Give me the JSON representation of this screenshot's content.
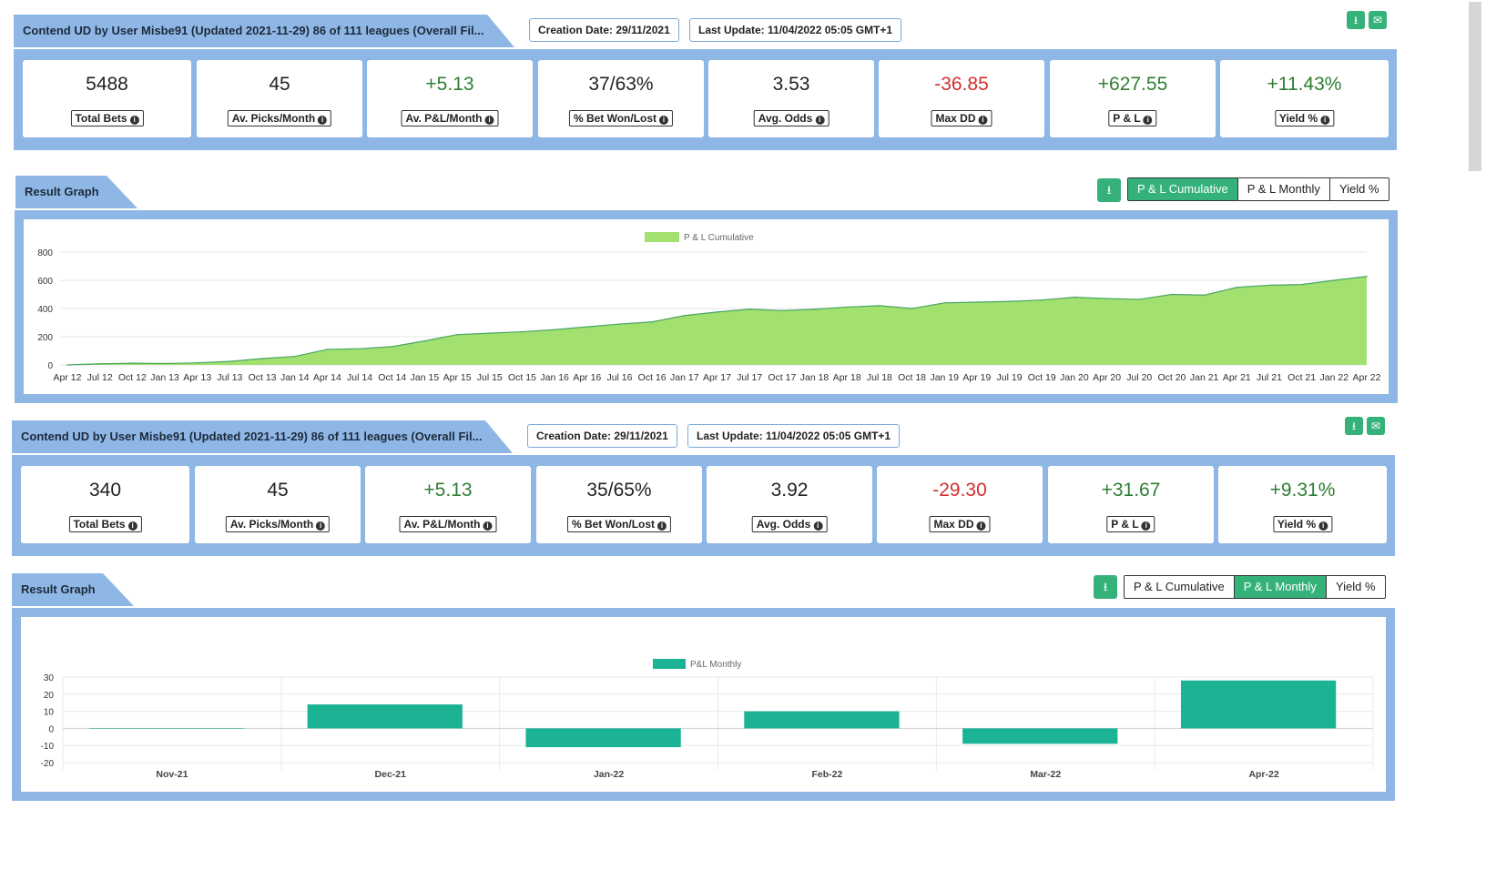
{
  "panels": [
    {
      "title": "Contend UD by User Misbe91 (Updated 2021-11-29) 86 of 111 leagues (Overall Fil...",
      "creation_date": "Creation Date: 29/11/2021",
      "last_update": "Last Update: 11/04/2022 05:05 GMT+1",
      "stats": [
        {
          "value": "5488",
          "label": "Total Bets",
          "tone": "neutral"
        },
        {
          "value": "45",
          "label": "Av. Picks/Month",
          "tone": "neutral"
        },
        {
          "value": "+5.13",
          "label": "Av. P&L/Month",
          "tone": "pos"
        },
        {
          "value": "37/63%",
          "label": "% Bet Won/Lost",
          "tone": "neutral"
        },
        {
          "value": "3.53",
          "label": "Avg. Odds",
          "tone": "neutral"
        },
        {
          "value": "-36.85",
          "label": "Max DD",
          "tone": "neg"
        },
        {
          "value": "+627.55",
          "label": "P & L",
          "tone": "pos"
        },
        {
          "value": "+11.43%",
          "label": "Yield %",
          "tone": "pos"
        }
      ],
      "graph_title": "Result Graph",
      "tabs": [
        "P & L Cumulative",
        "P & L Monthly",
        "Yield %"
      ],
      "active_tab": 0
    },
    {
      "title": "Contend UD by User Misbe91 (Updated 2021-11-29) 86 of 111 leagues (Overall Fil...",
      "creation_date": "Creation Date: 29/11/2021",
      "last_update": "Last Update: 11/04/2022 05:05 GMT+1",
      "stats": [
        {
          "value": "340",
          "label": "Total Bets",
          "tone": "neutral"
        },
        {
          "value": "45",
          "label": "Av. Picks/Month",
          "tone": "neutral"
        },
        {
          "value": "+5.13",
          "label": "Av. P&L/Month",
          "tone": "pos"
        },
        {
          "value": "35/65%",
          "label": "% Bet Won/Lost",
          "tone": "neutral"
        },
        {
          "value": "3.92",
          "label": "Avg. Odds",
          "tone": "neutral"
        },
        {
          "value": "-29.30",
          "label": "Max DD",
          "tone": "neg"
        },
        {
          "value": "+31.67",
          "label": "P & L",
          "tone": "pos"
        },
        {
          "value": "+9.31%",
          "label": "Yield %",
          "tone": "pos"
        }
      ],
      "graph_title": "Result Graph",
      "tabs": [
        "P & L Cumulative",
        "P & L Monthly",
        "Yield %"
      ],
      "active_tab": 1
    }
  ],
  "icons": {
    "download": "download-icon",
    "email": "envelope-icon",
    "info": "info-icon"
  },
  "colors": {
    "accent": "#35b27a",
    "band": "#8fb7e6",
    "area": "#a2e06f",
    "bar": "#1cb394",
    "positive": "#2e7d32",
    "negative": "#d32f2f"
  },
  "chart_data": [
    {
      "type": "area",
      "legend": "P & L Cumulative",
      "ylim": [
        0,
        800
      ],
      "yticks": [
        0,
        200,
        400,
        600,
        800
      ],
      "xticks": [
        "Apr 12",
        "Jul 12",
        "Oct 12",
        "Jan 13",
        "Apr 13",
        "Jul 13",
        "Oct 13",
        "Jan 14",
        "Apr 14",
        "Jul 14",
        "Oct 14",
        "Jan 15",
        "Apr 15",
        "Jul 15",
        "Oct 15",
        "Jan 16",
        "Apr 16",
        "Jul 16",
        "Oct 16",
        "Jan 17",
        "Apr 17",
        "Jul 17",
        "Oct 17",
        "Jan 18",
        "Apr 18",
        "Jul 18",
        "Oct 18",
        "Jan 19",
        "Apr 19",
        "Jul 19",
        "Oct 19",
        "Jan 20",
        "Apr 20",
        "Jul 20",
        "Oct 20",
        "Jan 21",
        "Apr 21",
        "Jul 21",
        "Oct 21",
        "Jan 22",
        "Apr 22"
      ],
      "values": [
        0,
        8,
        12,
        10,
        15,
        25,
        45,
        60,
        110,
        115,
        130,
        170,
        215,
        225,
        235,
        250,
        270,
        290,
        305,
        350,
        375,
        395,
        385,
        395,
        410,
        420,
        400,
        440,
        445,
        450,
        460,
        480,
        470,
        465,
        500,
        495,
        550,
        565,
        570,
        600,
        627.55
      ],
      "grid": true,
      "legend_position": "top-center"
    },
    {
      "type": "bar",
      "legend": "P&L Monthly",
      "categories": [
        "Nov-21",
        "Dec-21",
        "Jan-22",
        "Feb-22",
        "Mar-22",
        "Apr-22"
      ],
      "values": [
        0,
        14,
        -11,
        10,
        -9,
        28
      ],
      "ylim": [
        -20,
        30
      ],
      "yticks": [
        -20,
        -10,
        0,
        10,
        20,
        30
      ],
      "grid": true,
      "legend_position": "top-center"
    }
  ]
}
